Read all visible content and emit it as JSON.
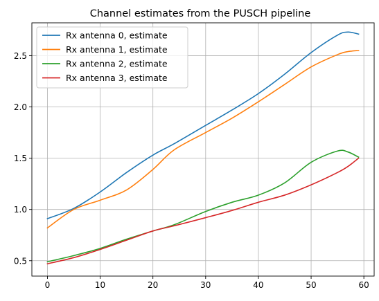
{
  "chart_data": {
    "type": "line",
    "title": "Channel estimates from the PUSCH pipeline",
    "xlabel": "",
    "ylabel": "",
    "xlim": [
      -2.95,
      61.95
    ],
    "ylim": [
      0.35,
      2.82
    ],
    "xticks": [
      0,
      10,
      20,
      30,
      40,
      50,
      60
    ],
    "yticks": [
      0.5,
      1.0,
      1.5,
      2.0,
      2.5
    ],
    "grid": true,
    "legend_position": "upper left",
    "x": [
      0,
      5,
      10,
      15,
      20,
      24,
      30,
      35,
      40,
      45,
      50,
      55,
      57,
      59
    ],
    "series": [
      {
        "name": "Rx antenna 0, estimate",
        "color": "#1f77b4",
        "values": [
          0.91,
          1.01,
          1.17,
          1.36,
          1.53,
          1.64,
          1.82,
          1.97,
          2.13,
          2.32,
          2.53,
          2.7,
          2.73,
          2.71
        ]
      },
      {
        "name": "Rx antenna 1, estimate",
        "color": "#ff7f0e",
        "values": [
          0.82,
          1.0,
          1.09,
          1.19,
          1.39,
          1.58,
          1.75,
          1.89,
          2.05,
          2.22,
          2.39,
          2.51,
          2.54,
          2.55
        ]
      },
      {
        "name": "Rx antenna 2, estimate",
        "color": "#2ca02c",
        "values": [
          0.49,
          0.55,
          0.62,
          0.71,
          0.79,
          0.85,
          0.98,
          1.07,
          1.14,
          1.26,
          1.46,
          1.57,
          1.56,
          1.51
        ]
      },
      {
        "name": "Rx antenna 3, estimate",
        "color": "#d62728",
        "values": [
          0.47,
          0.53,
          0.61,
          0.7,
          0.79,
          0.84,
          0.92,
          0.99,
          1.07,
          1.14,
          1.24,
          1.36,
          1.42,
          1.5
        ]
      }
    ]
  }
}
